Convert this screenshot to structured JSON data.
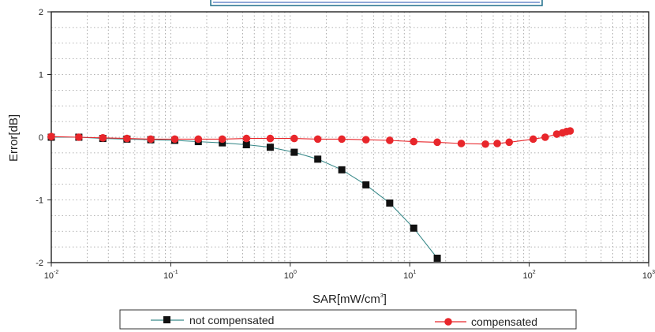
{
  "chart_data": {
    "type": "scatter",
    "xscale": "log",
    "xlim": [
      0.01,
      1000
    ],
    "ylim": [
      -2,
      2
    ],
    "grid": true,
    "xlabel": "SAR[mW/cm",
    "xlabel_sup": "3",
    "xlabel_close": "]",
    "ylabel": "Error[dB]",
    "yticks": [
      "-2",
      "-1",
      "0",
      "1",
      "2"
    ],
    "xticks": [
      {
        "base": "10",
        "exp": "-2"
      },
      {
        "base": "10",
        "exp": "-1"
      },
      {
        "base": "10",
        "exp": "0"
      },
      {
        "base": "10",
        "exp": "1"
      },
      {
        "base": "10",
        "exp": "2"
      },
      {
        "base": "10",
        "exp": "3"
      }
    ],
    "legend_position": "bottom",
    "series": [
      {
        "name": "not compensated",
        "color": "#111111",
        "line_color": "#3a8a8a",
        "marker": "square",
        "x": [
          0.01,
          0.017,
          0.027,
          0.043,
          0.068,
          0.108,
          0.17,
          0.27,
          0.43,
          0.68,
          1.08,
          1.7,
          2.7,
          4.3,
          6.8,
          10.8,
          17
        ],
        "y": [
          0.0,
          0.0,
          -0.02,
          -0.03,
          -0.04,
          -0.05,
          -0.07,
          -0.09,
          -0.12,
          -0.16,
          -0.24,
          -0.35,
          -0.52,
          -0.76,
          -1.05,
          -1.45,
          -1.93
        ]
      },
      {
        "name": "compensated",
        "color": "#e8262b",
        "line_color": "#e8262b",
        "marker": "circle",
        "x": [
          0.01,
          0.017,
          0.027,
          0.043,
          0.068,
          0.108,
          0.17,
          0.27,
          0.43,
          0.68,
          1.08,
          1.7,
          2.7,
          4.3,
          6.8,
          10.8,
          17,
          27,
          43,
          54,
          68,
          108,
          136,
          170,
          190,
          205,
          220
        ],
        "y": [
          0.01,
          0.0,
          -0.01,
          -0.02,
          -0.03,
          -0.03,
          -0.03,
          -0.03,
          -0.02,
          -0.02,
          -0.02,
          -0.03,
          -0.03,
          -0.04,
          -0.05,
          -0.07,
          -0.08,
          -0.1,
          -0.11,
          -0.1,
          -0.08,
          -0.03,
          0.0,
          0.05,
          0.07,
          0.09,
          0.1
        ]
      }
    ]
  }
}
